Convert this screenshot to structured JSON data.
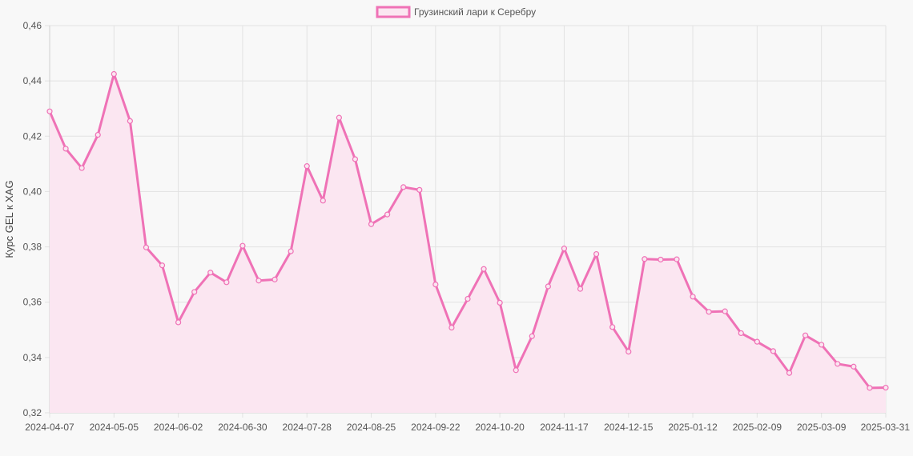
{
  "chart_data": {
    "type": "line",
    "title": "",
    "xlabel": "",
    "ylabel": "Курс GEL к XAG",
    "ylim": [
      0.32,
      0.46
    ],
    "y_ticks": [
      "0,46",
      "0,44",
      "0,42",
      "0,40",
      "0,38",
      "0,36",
      "0,34",
      "0,32"
    ],
    "y_tick_values": [
      0.46,
      0.44,
      0.42,
      0.4,
      0.38,
      0.36,
      0.34,
      0.32
    ],
    "x_ticks": [
      "2024-04-07",
      "2024-05-05",
      "2024-06-02",
      "2024-06-30",
      "2024-07-28",
      "2024-08-25",
      "2024-09-22",
      "2024-10-20",
      "2024-11-17",
      "2024-12-15",
      "2025-01-12",
      "2025-02-09",
      "2025-03-09",
      "2025-03-31"
    ],
    "x_tick_index": [
      0,
      4,
      8,
      12,
      16,
      20,
      24,
      28,
      32,
      36,
      40,
      44,
      48,
      52
    ],
    "grid": true,
    "legend_position": "top-center",
    "colors": {
      "line": "#ef72b6",
      "fill": "#fbe6f1",
      "background": "#f8f8f8"
    },
    "series": [
      {
        "name": "Грузинский лари к Серебру",
        "values": [
          0.429,
          0.4155,
          0.4085,
          0.4205,
          0.4425,
          0.4255,
          0.3798,
          0.3733,
          0.3527,
          0.3637,
          0.3707,
          0.3672,
          0.3804,
          0.3678,
          0.3682,
          0.3784,
          0.4092,
          0.3967,
          0.4267,
          0.4117,
          0.3882,
          0.3917,
          0.4016,
          0.4006,
          0.3664,
          0.3508,
          0.3612,
          0.372,
          0.3598,
          0.3354,
          0.3477,
          0.3657,
          0.3794,
          0.3648,
          0.3774,
          0.351,
          0.3421,
          0.3756,
          0.3754,
          0.3755,
          0.362,
          0.3565,
          0.3567,
          0.3488,
          0.3457,
          0.3423,
          0.3344,
          0.348,
          0.3446,
          0.3377,
          0.3367,
          0.329,
          0.3291
        ]
      }
    ]
  }
}
